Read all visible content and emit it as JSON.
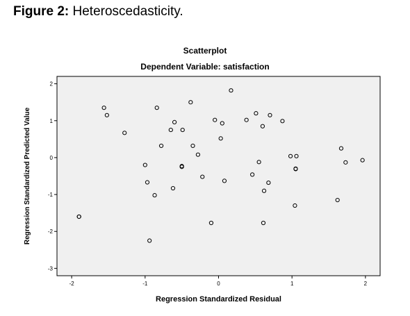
{
  "figure": {
    "label": "Figure 2:",
    "caption": "Heteroscedasticity."
  },
  "chart_data": {
    "type": "scatter",
    "title": "Scatterplot",
    "subtitle": "Dependent Variable: satisfaction",
    "xlabel": "Regression Standardized Residual",
    "ylabel": "Regression Standardized Predicted Value",
    "xlim": [
      -2.2,
      2.2
    ],
    "ylim": [
      -3.2,
      2.2
    ],
    "xticks": [
      -2,
      -1,
      0,
      1,
      2
    ],
    "yticks": [
      2,
      1,
      0,
      -1,
      -2,
      -3
    ],
    "grid": false,
    "plot_background": "#f0f0f0",
    "marker_color": "#000000",
    "points": [
      {
        "x": -1.9,
        "y": -1.6
      },
      {
        "x": -1.9,
        "y": -1.6
      },
      {
        "x": -1.56,
        "y": 1.35
      },
      {
        "x": -1.52,
        "y": 1.15
      },
      {
        "x": -1.28,
        "y": 0.67
      },
      {
        "x": -0.84,
        "y": 1.35
      },
      {
        "x": -1.0,
        "y": -0.2
      },
      {
        "x": -0.97,
        "y": -0.67
      },
      {
        "x": -0.94,
        "y": -2.25
      },
      {
        "x": -0.87,
        "y": -1.02
      },
      {
        "x": -0.78,
        "y": 0.32
      },
      {
        "x": -0.65,
        "y": 0.75
      },
      {
        "x": -0.6,
        "y": 0.96
      },
      {
        "x": -0.62,
        "y": -0.83
      },
      {
        "x": -0.5,
        "y": -0.23
      },
      {
        "x": -0.5,
        "y": -0.25
      },
      {
        "x": -0.49,
        "y": 0.75
      },
      {
        "x": -0.38,
        "y": 1.5
      },
      {
        "x": -0.35,
        "y": 0.32
      },
      {
        "x": -0.28,
        "y": 0.08
      },
      {
        "x": -0.22,
        "y": -0.52
      },
      {
        "x": -0.1,
        "y": -1.77
      },
      {
        "x": -0.05,
        "y": 1.02
      },
      {
        "x": 0.03,
        "y": 0.52
      },
      {
        "x": 0.05,
        "y": 0.93
      },
      {
        "x": 0.08,
        "y": -0.63
      },
      {
        "x": 0.17,
        "y": 1.82
      },
      {
        "x": 0.38,
        "y": 1.02
      },
      {
        "x": 0.46,
        "y": -0.46
      },
      {
        "x": 0.51,
        "y": 1.2
      },
      {
        "x": 0.55,
        "y": -0.12
      },
      {
        "x": 0.6,
        "y": 0.85
      },
      {
        "x": 0.62,
        "y": -0.9
      },
      {
        "x": 0.61,
        "y": -1.77
      },
      {
        "x": 0.68,
        "y": -0.68
      },
      {
        "x": 0.7,
        "y": 1.15
      },
      {
        "x": 0.87,
        "y": 0.99
      },
      {
        "x": 0.98,
        "y": 0.04
      },
      {
        "x": 1.04,
        "y": -1.3
      },
      {
        "x": 1.06,
        "y": 0.04
      },
      {
        "x": 1.05,
        "y": -0.3
      },
      {
        "x": 1.05,
        "y": -0.31
      },
      {
        "x": 1.62,
        "y": -1.15
      },
      {
        "x": 1.67,
        "y": 0.25
      },
      {
        "x": 1.73,
        "y": -0.13
      },
      {
        "x": 1.96,
        "y": -0.07
      }
    ]
  }
}
